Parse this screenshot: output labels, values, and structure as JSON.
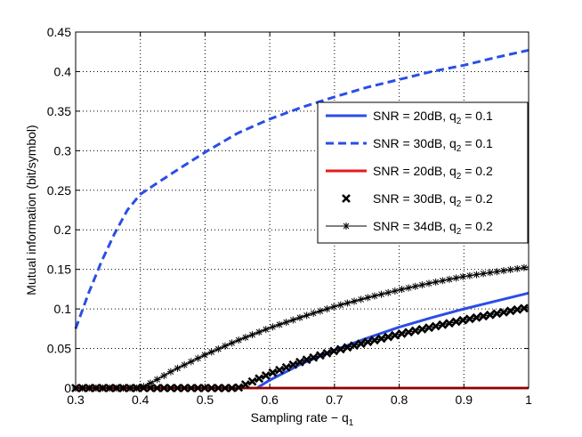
{
  "chart_data": {
    "type": "line",
    "title": "",
    "xlabel": "Sampling rate − q",
    "xlabel_sub": "1",
    "ylabel": "Mutual information (bit/symbol)",
    "xlim": [
      0.3,
      1.0
    ],
    "ylim": [
      0,
      0.45
    ],
    "grid": true,
    "legend_position": "right",
    "x_ticks": [
      0.3,
      0.4,
      0.5,
      0.6,
      0.7,
      0.8,
      0.9,
      1
    ],
    "x_tick_labels": [
      "0.3",
      "0.4",
      "0.5",
      "0.6",
      "0.7",
      "0.8",
      "0.9",
      "1"
    ],
    "y_ticks": [
      0,
      0.05,
      0.1,
      0.15,
      0.2,
      0.25,
      0.3,
      0.35,
      0.4,
      0.45
    ],
    "y_tick_labels": [
      "0",
      "0.05",
      "0.1",
      "0.15",
      "0.2",
      "0.25",
      "0.3",
      "0.35",
      "0.4",
      "0.45"
    ],
    "series": [
      {
        "name": "SNR = 20dB, q2 = 0.1",
        "label_main": "SNR = 20dB, q",
        "label_sub": "2",
        "label_tail": " = 0.1",
        "style": "solid",
        "color": "#2a4ee6",
        "x": [
          0.58,
          0.6,
          0.65,
          0.7,
          0.75,
          0.8,
          0.85,
          0.9,
          0.95,
          1.0
        ],
        "y": [
          0.0,
          0.01,
          0.031,
          0.048,
          0.063,
          0.077,
          0.089,
          0.1,
          0.11,
          0.12
        ]
      },
      {
        "name": "SNR = 30dB, q2 = 0.1",
        "label_main": "SNR = 30dB, q",
        "label_sub": "2",
        "label_tail": " = 0.1",
        "style": "dashed",
        "color": "#2a4ee6",
        "x": [
          0.3,
          0.32,
          0.34,
          0.36,
          0.38,
          0.4,
          0.45,
          0.5,
          0.55,
          0.6,
          0.65,
          0.7,
          0.75,
          0.8,
          0.85,
          0.9,
          0.95,
          1.0
        ],
        "y": [
          0.075,
          0.12,
          0.16,
          0.195,
          0.225,
          0.245,
          0.272,
          0.298,
          0.322,
          0.34,
          0.355,
          0.368,
          0.38,
          0.39,
          0.4,
          0.408,
          0.418,
          0.427
        ]
      },
      {
        "name": "SNR = 20dB, q2 = 0.2",
        "label_main": "SNR = 20dB, q",
        "label_sub": "2",
        "label_tail": " = 0.2",
        "style": "solid",
        "color": "#e41a1a",
        "x": [
          0.3,
          1.0
        ],
        "y": [
          0.0,
          0.0
        ]
      },
      {
        "name": "SNR = 30dB, q2 = 0.2",
        "label_main": "SNR = 30dB, q",
        "label_sub": "2",
        "label_tail": " = 0.2",
        "style": "x-marker",
        "color": "#000000",
        "x": [
          0.3,
          0.35,
          0.4,
          0.45,
          0.5,
          0.55,
          0.6,
          0.65,
          0.7,
          0.75,
          0.8,
          0.85,
          0.9,
          0.95,
          1.0
        ],
        "y": [
          0.0,
          0.0,
          0.0,
          0.0,
          0.0,
          0.0,
          0.018,
          0.034,
          0.047,
          0.058,
          0.068,
          0.077,
          0.086,
          0.094,
          0.102
        ]
      },
      {
        "name": "SNR = 34dB, q2 = 0.2",
        "label_main": "SNR = 34dB, q",
        "label_sub": "2",
        "label_tail": " = 0.2",
        "style": "star-marker",
        "color": "#000000",
        "x": [
          0.3,
          0.35,
          0.4,
          0.42,
          0.45,
          0.5,
          0.55,
          0.6,
          0.65,
          0.7,
          0.75,
          0.8,
          0.85,
          0.9,
          0.95,
          1.0
        ],
        "y": [
          0.0,
          0.0,
          0.0,
          0.008,
          0.022,
          0.042,
          0.06,
          0.076,
          0.09,
          0.103,
          0.114,
          0.124,
          0.133,
          0.141,
          0.147,
          0.153
        ]
      }
    ]
  }
}
